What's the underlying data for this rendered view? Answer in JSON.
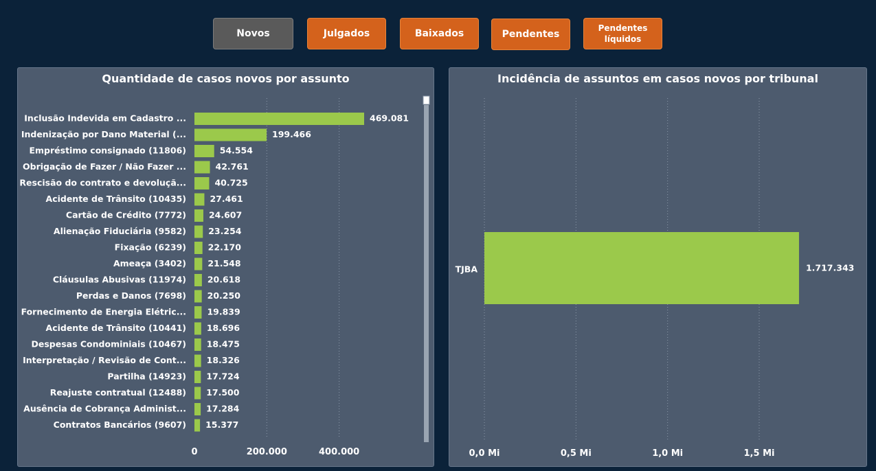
{
  "buttons": [
    {
      "label": "Novos",
      "active": true
    },
    {
      "label": "Julgados",
      "active": false
    },
    {
      "label": "Baixados",
      "active": false
    },
    {
      "label": "Pendentes",
      "active": false
    },
    {
      "label": "Pendentes líquidos",
      "active": false
    }
  ],
  "colors": {
    "background": "#0b2239",
    "panel": "#4d5b6e",
    "bar": "#9bc94b",
    "button_orange": "#d4621c",
    "button_active": "#5a5a5a"
  },
  "left_chart": {
    "title": "Quantidade de casos novos por assunto"
  },
  "right_chart": {
    "title": "Incidência de assuntos em casos novos por tribunal"
  },
  "chart_data": [
    {
      "type": "bar",
      "orientation": "horizontal",
      "title": "Quantidade de casos novos por assunto",
      "categories": [
        "Inclusão Indevida em Cadastro ...",
        "Indenização por Dano Material (...",
        "Empréstimo consignado (11806)",
        "Obrigação de Fazer / Não Fazer ...",
        "Rescisão do contrato e devoluçã...",
        "Acidente de Trânsito (10435)",
        "Cartão de Crédito (7772)",
        "Alienação Fiduciária (9582)",
        "Fixação (6239)",
        "Ameaça (3402)",
        "Cláusulas Abusivas (11974)",
        "Perdas e Danos (7698)",
        "Fornecimento de Energia Elétric...",
        "Acidente de Trânsito (10441)",
        "Despesas Condominiais (10467)",
        "Interpretação / Revisão de Cont...",
        "Partilha (14923)",
        "Reajuste contratual (12488)",
        "Ausência de Cobrança Administ...",
        "Contratos Bancários (9607)"
      ],
      "values": [
        469081,
        199466,
        54554,
        42761,
        40725,
        27461,
        24607,
        23254,
        22170,
        21548,
        20618,
        20250,
        19839,
        18696,
        18475,
        18326,
        17724,
        17500,
        17284,
        15377
      ],
      "value_labels": [
        "469.081",
        "199.466",
        "54.554",
        "42.761",
        "40.725",
        "27.461",
        "24.607",
        "23.254",
        "22.170",
        "21.548",
        "20.618",
        "20.250",
        "19.839",
        "18.696",
        "18.475",
        "18.326",
        "17.724",
        "17.500",
        "17.284",
        "15.377"
      ],
      "xlim": [
        0,
        630000
      ],
      "xticks": [
        0,
        200000,
        400000
      ],
      "xtick_labels": [
        "0",
        "200.000",
        "400.000"
      ],
      "grid": true
    },
    {
      "type": "bar",
      "orientation": "horizontal",
      "title": "Incidência de assuntos em casos novos por tribunal",
      "categories": [
        "TJBA"
      ],
      "values": [
        1717343
      ],
      "value_labels": [
        "1.717.343"
      ],
      "xlim": [
        0,
        2000000
      ],
      "xticks": [
        0,
        500000,
        1000000,
        1500000
      ],
      "xtick_labels": [
        "0,0 Mi",
        "0,5 Mi",
        "1,0 Mi",
        "1,5 Mi"
      ],
      "grid": true
    }
  ]
}
